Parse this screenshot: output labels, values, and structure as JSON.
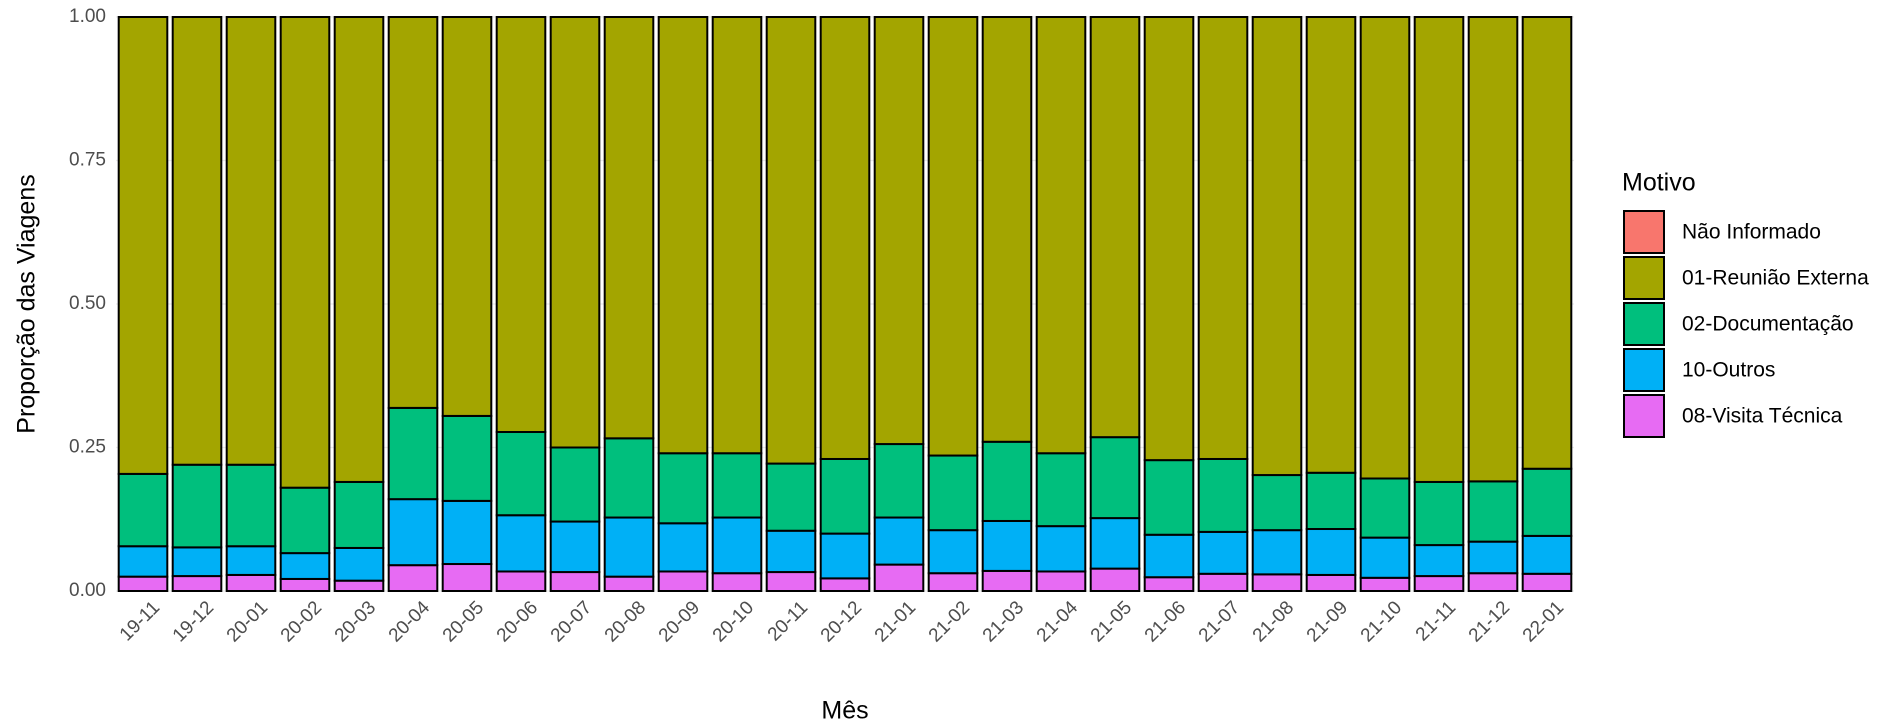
{
  "chart_data": {
    "type": "stacked_bar",
    "x_label": "Mês",
    "y_label": "Proporção das Viagens",
    "legend_title": "Motivo",
    "legend_position": "right",
    "grid": true,
    "categories": [
      "19-11",
      "19-12",
      "20-01",
      "20-02",
      "20-03",
      "20-04",
      "20-05",
      "20-06",
      "20-07",
      "20-08",
      "20-09",
      "20-10",
      "20-11",
      "20-12",
      "21-01",
      "21-02",
      "21-03",
      "21-04",
      "21-05",
      "21-06",
      "21-07",
      "21-08",
      "21-09",
      "21-10",
      "21-11",
      "21-12",
      "22-01"
    ],
    "ylim": [
      0,
      1
    ],
    "yticks": [
      {
        "value": 0,
        "label": "0.00"
      },
      {
        "value": 0.25,
        "label": "0.25"
      },
      {
        "value": 0.5,
        "label": "0.50"
      },
      {
        "value": 0.75,
        "label": "0.75"
      },
      {
        "value": 1,
        "label": "1.00"
      }
    ],
    "series": [
      {
        "name": "Não Informado",
        "color": "#F8766D",
        "values": [
          0,
          0,
          0,
          0,
          0,
          0,
          0,
          0,
          0,
          0,
          0,
          0,
          0,
          0,
          0,
          0,
          0,
          0,
          0,
          0,
          0,
          0,
          0,
          0,
          0,
          0,
          0
        ]
      },
      {
        "name": "01-Reunião Externa",
        "color": "#A3A500",
        "values": [
          0.796,
          0.78,
          0.78,
          0.82,
          0.81,
          0.681,
          0.695,
          0.723,
          0.75,
          0.734,
          0.76,
          0.76,
          0.778,
          0.77,
          0.744,
          0.764,
          0.74,
          0.76,
          0.732,
          0.772,
          0.77,
          0.798,
          0.794,
          0.804,
          0.81,
          0.809,
          0.787
        ]
      },
      {
        "name": "02-Documentação",
        "color": "#00BF7D",
        "values": [
          0.126,
          0.144,
          0.142,
          0.114,
          0.115,
          0.159,
          0.148,
          0.145,
          0.129,
          0.138,
          0.122,
          0.112,
          0.117,
          0.13,
          0.128,
          0.13,
          0.138,
          0.127,
          0.141,
          0.13,
          0.127,
          0.096,
          0.098,
          0.103,
          0.11,
          0.105,
          0.117
        ]
      },
      {
        "name": "10-Outros",
        "color": "#00B0F6",
        "values": [
          0.053,
          0.05,
          0.05,
          0.045,
          0.057,
          0.115,
          0.11,
          0.098,
          0.088,
          0.103,
          0.084,
          0.097,
          0.072,
          0.078,
          0.082,
          0.075,
          0.087,
          0.079,
          0.088,
          0.074,
          0.073,
          0.077,
          0.08,
          0.07,
          0.054,
          0.055,
          0.066
        ]
      },
      {
        "name": "08-Visita Técnica",
        "color": "#E76BF3",
        "values": [
          0.025,
          0.026,
          0.028,
          0.021,
          0.018,
          0.045,
          0.047,
          0.034,
          0.033,
          0.025,
          0.034,
          0.031,
          0.033,
          0.022,
          0.046,
          0.031,
          0.035,
          0.034,
          0.039,
          0.024,
          0.03,
          0.029,
          0.028,
          0.023,
          0.026,
          0.031,
          0.03
        ]
      }
    ]
  }
}
